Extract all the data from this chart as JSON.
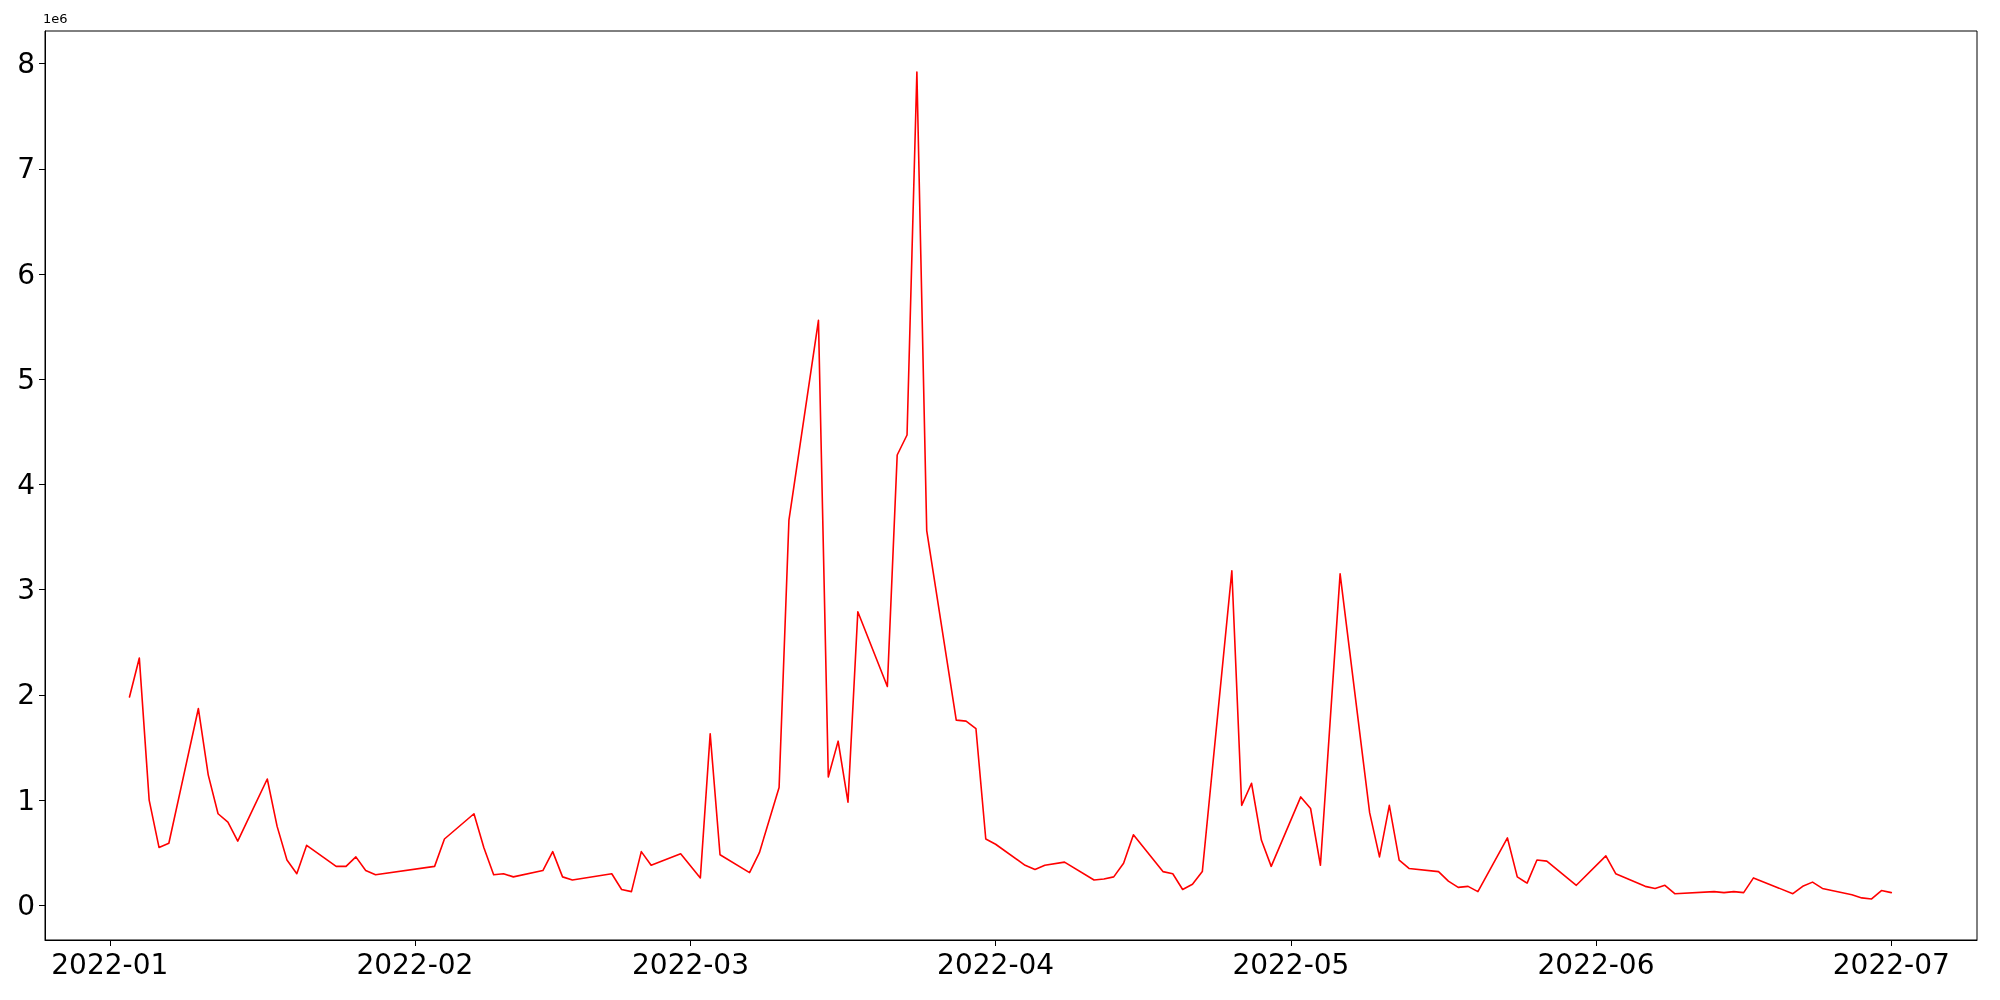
{
  "chart_data": {
    "type": "line",
    "annotations": [
      "1e6"
    ],
    "x": [
      "2022-01-03",
      "2022-01-04",
      "2022-01-05",
      "2022-01-06",
      "2022-01-07",
      "2022-01-10",
      "2022-01-11",
      "2022-01-12",
      "2022-01-13",
      "2022-01-14",
      "2022-01-17",
      "2022-01-18",
      "2022-01-19",
      "2022-01-20",
      "2022-01-21",
      "2022-01-24",
      "2022-01-25",
      "2022-01-26",
      "2022-01-27",
      "2022-01-28",
      "2022-02-03",
      "2022-02-04",
      "2022-02-07",
      "2022-02-08",
      "2022-02-09",
      "2022-02-10",
      "2022-02-11",
      "2022-02-14",
      "2022-02-15",
      "2022-02-16",
      "2022-02-17",
      "2022-02-21",
      "2022-02-22",
      "2022-02-23",
      "2022-02-24",
      "2022-02-25",
      "2022-02-28",
      "2022-03-02",
      "2022-03-03",
      "2022-03-04",
      "2022-03-07",
      "2022-03-08",
      "2022-03-10",
      "2022-03-11",
      "2022-03-14",
      "2022-03-15",
      "2022-03-16",
      "2022-03-17",
      "2022-03-18",
      "2022-03-21",
      "2022-03-22",
      "2022-03-23",
      "2022-03-24",
      "2022-03-25",
      "2022-03-28",
      "2022-03-29",
      "2022-03-30",
      "2022-03-31",
      "2022-04-01",
      "2022-04-04",
      "2022-04-05",
      "2022-04-06",
      "2022-04-08",
      "2022-04-11",
      "2022-04-12",
      "2022-04-13",
      "2022-04-14",
      "2022-04-15",
      "2022-04-18",
      "2022-04-19",
      "2022-04-20",
      "2022-04-21",
      "2022-04-22",
      "2022-04-25",
      "2022-04-26",
      "2022-04-27",
      "2022-04-28",
      "2022-04-29",
      "2022-05-02",
      "2022-05-03",
      "2022-05-04",
      "2022-05-06",
      "2022-05-09",
      "2022-05-10",
      "2022-05-11",
      "2022-05-12",
      "2022-05-13",
      "2022-05-16",
      "2022-05-17",
      "2022-05-18",
      "2022-05-19",
      "2022-05-20",
      "2022-05-23",
      "2022-05-24",
      "2022-05-25",
      "2022-05-26",
      "2022-05-27",
      "2022-05-30",
      "2022-06-02",
      "2022-06-03",
      "2022-06-06",
      "2022-06-07",
      "2022-06-08",
      "2022-06-09",
      "2022-06-13",
      "2022-06-14",
      "2022-06-15",
      "2022-06-16",
      "2022-06-17",
      "2022-06-21",
      "2022-06-22",
      "2022-06-23",
      "2022-06-24",
      "2022-06-27",
      "2022-06-28",
      "2022-06-29",
      "2022-06-30",
      "2022-07-01"
    ],
    "series": [
      {
        "color": "#ff0000",
        "values": [
          1.98,
          2.35,
          1.0,
          0.55,
          0.59,
          1.87,
          1.24,
          0.87,
          0.79,
          0.61,
          1.2,
          0.75,
          0.43,
          0.3,
          0.57,
          0.37,
          0.37,
          0.46,
          0.33,
          0.29,
          0.37,
          0.63,
          0.87,
          0.55,
          0.29,
          0.3,
          0.27,
          0.33,
          0.51,
          0.27,
          0.24,
          0.3,
          0.15,
          0.13,
          0.51,
          0.38,
          0.49,
          0.26,
          1.63,
          0.48,
          0.31,
          0.5,
          1.12,
          3.66,
          5.56,
          1.22,
          1.56,
          0.98,
          2.79,
          2.08,
          4.28,
          4.47,
          7.92,
          3.56,
          1.76,
          1.75,
          1.68,
          0.63,
          0.58,
          0.38,
          0.34,
          0.38,
          0.41,
          0.24,
          0.25,
          0.27,
          0.4,
          0.67,
          0.32,
          0.3,
          0.15,
          0.2,
          0.32,
          3.18,
          0.95,
          1.16,
          0.62,
          0.37,
          1.03,
          0.92,
          0.38,
          3.15,
          0.88,
          0.46,
          0.95,
          0.43,
          0.35,
          0.32,
          0.23,
          0.17,
          0.18,
          0.13,
          0.64,
          0.27,
          0.21,
          0.43,
          0.42,
          0.19,
          0.47,
          0.3,
          0.18,
          0.16,
          0.19,
          0.11,
          0.13,
          0.12,
          0.13,
          0.12,
          0.26,
          0.11,
          0.18,
          0.22,
          0.16,
          0.1,
          0.07,
          0.06,
          0.14,
          0.12
        ]
      }
    ],
    "xlim": [
      "2021-12-25T10:00",
      "2022-07-09T17:00"
    ],
    "xticks": [
      "2022-01",
      "2022-02",
      "2022-03",
      "2022-04",
      "2022-05",
      "2022-06",
      "2022-07"
    ],
    "ylim": [
      -0.33,
      8.31
    ],
    "yticks": [
      0,
      1,
      2,
      3,
      4,
      5,
      6,
      7,
      8
    ],
    "marker": "none",
    "line_style": "solid"
  }
}
